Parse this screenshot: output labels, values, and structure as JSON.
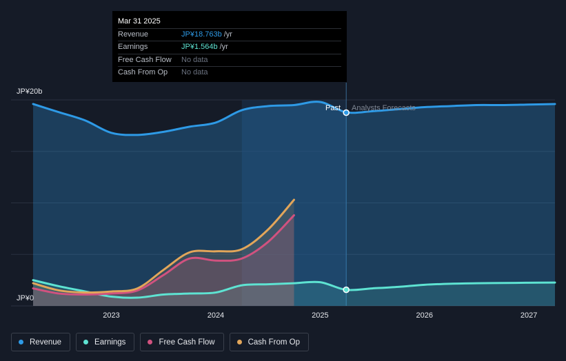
{
  "tooltip": {
    "date": "Mar 31 2025",
    "rows": [
      {
        "name": "Revenue",
        "value": "JP¥18.763b",
        "unit": "/yr",
        "color": "#2e9ae6"
      },
      {
        "name": "Earnings",
        "value": "JP¥1.564b",
        "unit": "/yr",
        "color": "#5ee3d2"
      },
      {
        "name": "Free Cash Flow",
        "value": "No data",
        "unit": "",
        "color": "#6b7280"
      },
      {
        "name": "Cash From Op",
        "value": "No data",
        "unit": "",
        "color": "#6b7280"
      }
    ]
  },
  "legend": [
    {
      "label": "Revenue",
      "color": "#2e9ae6"
    },
    {
      "label": "Earnings",
      "color": "#5ee3d2"
    },
    {
      "label": "Free Cash Flow",
      "color": "#d1527f"
    },
    {
      "label": "Cash From Op",
      "color": "#e2a65a"
    }
  ],
  "chart_data": {
    "type": "line",
    "y_axis_labels": [
      "JP¥20b",
      "JP¥0"
    ],
    "ylim": [
      0,
      20
    ],
    "xlim": [
      2022.25,
      2027.25
    ],
    "x_ticks": [
      "2023",
      "2024",
      "2025",
      "2026",
      "2027"
    ],
    "divider_past": 2024.25,
    "divider_forecast": 2025.25,
    "past_label": "Past",
    "forecast_label": "Analysts Forecasts",
    "series": [
      {
        "name": "Revenue",
        "color": "#2e9ae6",
        "x": [
          2022.25,
          2022.5,
          2022.75,
          2023.0,
          2023.25,
          2023.5,
          2023.75,
          2024.0,
          2024.25,
          2024.5,
          2024.75,
          2025.0,
          2025.25,
          2025.5,
          2025.75,
          2026.0,
          2026.25,
          2026.5,
          2026.75,
          2027.0,
          2027.25
        ],
        "y": [
          19.6,
          18.8,
          18.0,
          16.8,
          16.6,
          16.9,
          17.4,
          17.8,
          19.0,
          19.4,
          19.5,
          19.8,
          18.8,
          18.9,
          19.1,
          19.3,
          19.4,
          19.5,
          19.5,
          19.55,
          19.6
        ]
      },
      {
        "name": "Earnings",
        "color": "#5ee3d2",
        "x": [
          2022.25,
          2022.5,
          2022.75,
          2023.0,
          2023.25,
          2023.5,
          2023.75,
          2024.0,
          2024.25,
          2024.5,
          2024.75,
          2025.0,
          2025.25,
          2025.5,
          2025.75,
          2026.0,
          2026.25,
          2026.5,
          2026.75,
          2027.0,
          2027.25
        ],
        "y": [
          2.5,
          1.9,
          1.4,
          0.9,
          0.8,
          1.1,
          1.2,
          1.3,
          2.0,
          2.1,
          2.2,
          2.3,
          1.56,
          1.7,
          1.85,
          2.05,
          2.15,
          2.2,
          2.22,
          2.25,
          2.27
        ]
      },
      {
        "name": "Free Cash Flow",
        "color": "#d1527f",
        "x": [
          2022.25,
          2022.5,
          2022.75,
          2023.0,
          2023.25,
          2023.5,
          2023.75,
          2024.0,
          2024.25,
          2024.5,
          2024.75
        ],
        "y": [
          1.7,
          1.2,
          1.1,
          1.2,
          1.5,
          3.0,
          4.6,
          4.4,
          4.6,
          6.2,
          8.8
        ]
      },
      {
        "name": "Cash From Op",
        "color": "#e2a65a",
        "x": [
          2022.25,
          2022.5,
          2022.75,
          2023.0,
          2023.25,
          2023.5,
          2023.75,
          2024.0,
          2024.25,
          2024.5,
          2024.75
        ],
        "y": [
          2.2,
          1.5,
          1.3,
          1.4,
          1.7,
          3.5,
          5.2,
          5.3,
          5.5,
          7.4,
          10.3
        ]
      }
    ],
    "highlight_points": [
      {
        "series": "Revenue",
        "x": 2025.25,
        "y": 18.763
      },
      {
        "series": "Earnings",
        "x": 2025.25,
        "y": 1.564
      }
    ]
  }
}
